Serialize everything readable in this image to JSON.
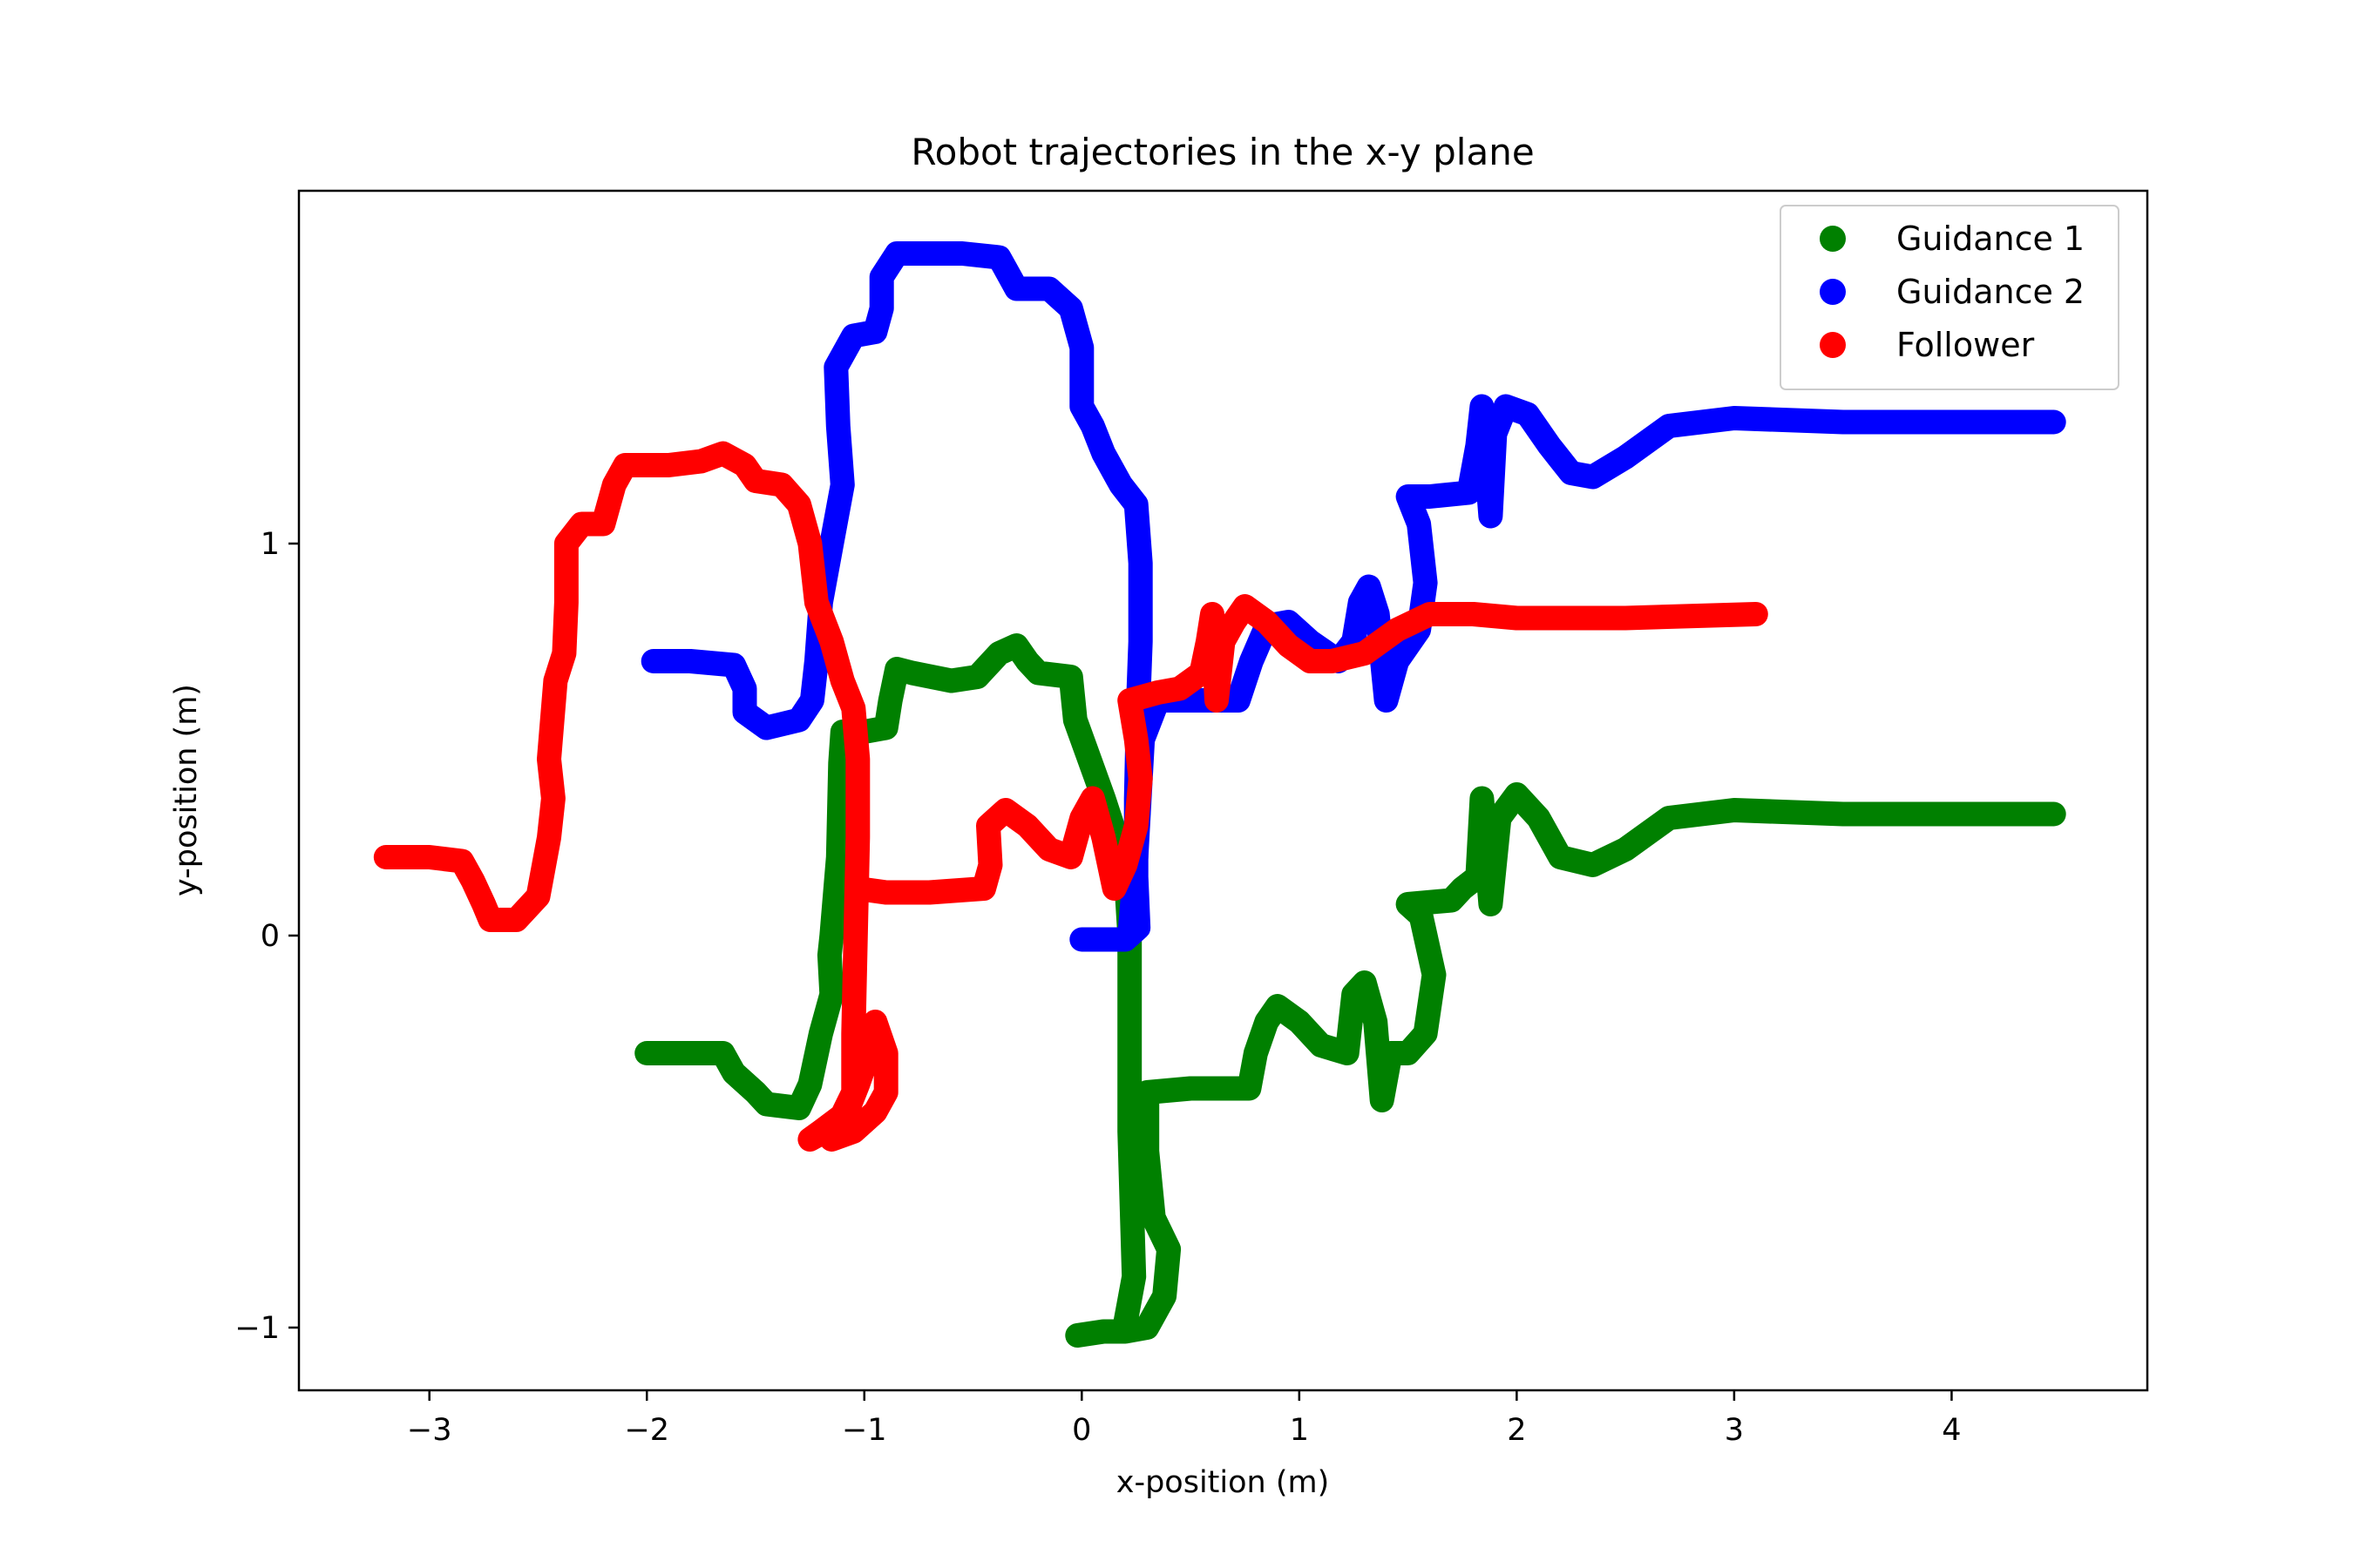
{
  "chart_data": {
    "type": "scatter",
    "title": "Robot trajectories in the x-y plane",
    "xlabel": "x-position (m)",
    "ylabel": "y-position (m)",
    "xlim": [
      -3.6,
      4.9
    ],
    "ylim": [
      -1.16,
      1.9
    ],
    "xticks": [
      -3,
      -2,
      -1,
      0,
      1,
      2,
      3,
      4
    ],
    "xtick_labels": [
      "−3",
      "−2",
      "−1",
      "0",
      "1",
      "2",
      "3",
      "4"
    ],
    "yticks": [
      -1,
      0,
      1
    ],
    "ytick_labels": [
      "−1",
      "0",
      "1"
    ],
    "grid": false,
    "legend": "top-right",
    "series": [
      {
        "name": "Guidance 1",
        "color": "#008000",
        "points": [
          [
            0.2,
            -0.99
          ],
          [
            0.24,
            -0.87
          ],
          [
            0.22,
            -0.5
          ],
          [
            0.22,
            -0.25
          ],
          [
            0.22,
            0.0
          ],
          [
            0.2,
            0.18
          ],
          [
            0.1,
            0.35
          ],
          [
            -0.03,
            0.55
          ],
          [
            -0.05,
            0.66
          ],
          [
            -0.2,
            0.67
          ],
          [
            -0.25,
            0.7
          ],
          [
            -0.3,
            0.74
          ],
          [
            -0.38,
            0.72
          ],
          [
            -0.48,
            0.66
          ],
          [
            -0.6,
            0.65
          ],
          [
            -0.78,
            0.67
          ],
          [
            -0.85,
            0.68
          ],
          [
            -0.88,
            0.6
          ],
          [
            -0.9,
            0.53
          ],
          [
            -1.0,
            0.52
          ],
          [
            -1.1,
            0.52
          ],
          [
            -1.11,
            0.44
          ],
          [
            -1.12,
            0.2
          ],
          [
            -1.15,
            0.0
          ],
          [
            -1.16,
            -0.05
          ],
          [
            -1.15,
            -0.15
          ],
          [
            -1.2,
            -0.25
          ],
          [
            -1.25,
            -0.38
          ],
          [
            -1.3,
            -0.44
          ],
          [
            -1.45,
            -0.43
          ],
          [
            -1.5,
            -0.4
          ],
          [
            -1.6,
            -0.35
          ],
          [
            -1.65,
            -0.3
          ],
          [
            -1.8,
            -0.3
          ],
          [
            -2.0,
            -0.3
          ]
        ]
      },
      {
        "name": "Guidance 1",
        "color": "#008000",
        "points": [
          [
            -0.02,
            -1.02
          ],
          [
            0.1,
            -1.01
          ],
          [
            0.2,
            -1.01
          ],
          [
            0.3,
            -1.0
          ],
          [
            0.38,
            -0.92
          ],
          [
            0.4,
            -0.8
          ],
          [
            0.33,
            -0.72
          ],
          [
            0.3,
            -0.55
          ],
          [
            0.3,
            -0.4
          ],
          [
            0.5,
            -0.39
          ],
          [
            0.77,
            -0.39
          ],
          [
            0.8,
            -0.3
          ],
          [
            0.85,
            -0.22
          ],
          [
            0.9,
            -0.18
          ],
          [
            1.0,
            -0.22
          ],
          [
            1.1,
            -0.28
          ],
          [
            1.22,
            -0.3
          ],
          [
            1.25,
            -0.15
          ],
          [
            1.3,
            -0.12
          ],
          [
            1.35,
            -0.22
          ],
          [
            1.38,
            -0.42
          ],
          [
            1.42,
            -0.3
          ],
          [
            1.5,
            -0.3
          ],
          [
            1.58,
            -0.25
          ],
          [
            1.62,
            -0.1
          ],
          [
            1.56,
            0.05
          ],
          [
            1.5,
            0.08
          ],
          [
            1.7,
            0.09
          ],
          [
            1.75,
            0.12
          ],
          [
            1.82,
            0.15
          ],
          [
            1.84,
            0.35
          ],
          [
            1.88,
            0.08
          ],
          [
            1.92,
            0.3
          ],
          [
            2.0,
            0.36
          ],
          [
            2.1,
            0.3
          ],
          [
            2.2,
            0.2
          ],
          [
            2.35,
            0.18
          ],
          [
            2.5,
            0.22
          ],
          [
            2.7,
            0.3
          ],
          [
            3.0,
            0.32
          ],
          [
            3.5,
            0.31
          ],
          [
            4.0,
            0.31
          ],
          [
            4.47,
            0.31
          ]
        ]
      },
      {
        "name": "Guidance 2",
        "color": "#0000ff",
        "points": [
          [
            -1.97,
            0.7
          ],
          [
            -1.8,
            0.7
          ],
          [
            -1.6,
            0.69
          ],
          [
            -1.55,
            0.63
          ],
          [
            -1.55,
            0.57
          ],
          [
            -1.45,
            0.53
          ],
          [
            -1.3,
            0.55
          ],
          [
            -1.24,
            0.6
          ],
          [
            -1.22,
            0.7
          ],
          [
            -1.2,
            0.85
          ],
          [
            -1.15,
            1.0
          ],
          [
            -1.1,
            1.15
          ],
          [
            -1.12,
            1.3
          ],
          [
            -1.13,
            1.45
          ],
          [
            -1.05,
            1.53
          ],
          [
            -0.95,
            1.54
          ],
          [
            -0.92,
            1.6
          ],
          [
            -0.92,
            1.68
          ],
          [
            -0.85,
            1.74
          ],
          [
            -0.7,
            1.74
          ],
          [
            -0.55,
            1.74
          ],
          [
            -0.38,
            1.73
          ],
          [
            -0.35,
            1.7
          ],
          [
            -0.3,
            1.65
          ],
          [
            -0.15,
            1.65
          ],
          [
            -0.05,
            1.6
          ],
          [
            0.0,
            1.5
          ],
          [
            0.0,
            1.35
          ],
          [
            0.05,
            1.3
          ],
          [
            0.1,
            1.23
          ],
          [
            0.18,
            1.15
          ],
          [
            0.25,
            1.1
          ],
          [
            0.27,
            0.95
          ],
          [
            0.27,
            0.75
          ],
          [
            0.26,
            0.6
          ],
          [
            0.25,
            0.35
          ],
          [
            0.25,
            0.15
          ],
          [
            0.26,
            0.02
          ],
          [
            0.2,
            -0.01
          ],
          [
            0.08,
            -0.01
          ],
          [
            0.0,
            -0.01
          ]
        ]
      },
      {
        "name": "Guidance 2",
        "color": "#0000ff",
        "points": [
          [
            0.22,
            0.0
          ],
          [
            0.25,
            0.2
          ],
          [
            0.28,
            0.5
          ],
          [
            0.35,
            0.6
          ],
          [
            0.5,
            0.6
          ],
          [
            0.72,
            0.6
          ],
          [
            0.78,
            0.7
          ],
          [
            0.85,
            0.79
          ],
          [
            0.95,
            0.8
          ],
          [
            1.05,
            0.75
          ],
          [
            1.18,
            0.7
          ],
          [
            1.25,
            0.75
          ],
          [
            1.28,
            0.85
          ],
          [
            1.32,
            0.89
          ],
          [
            1.36,
            0.82
          ],
          [
            1.4,
            0.6
          ],
          [
            1.45,
            0.7
          ],
          [
            1.55,
            0.78
          ],
          [
            1.58,
            0.9
          ],
          [
            1.55,
            1.05
          ],
          [
            1.5,
            1.12
          ],
          [
            1.6,
            1.12
          ],
          [
            1.78,
            1.13
          ],
          [
            1.82,
            1.25
          ],
          [
            1.84,
            1.35
          ],
          [
            1.88,
            1.07
          ],
          [
            1.9,
            1.28
          ],
          [
            1.95,
            1.35
          ],
          [
            2.05,
            1.33
          ],
          [
            2.15,
            1.25
          ],
          [
            2.25,
            1.18
          ],
          [
            2.35,
            1.17
          ],
          [
            2.5,
            1.22
          ],
          [
            2.7,
            1.3
          ],
          [
            3.0,
            1.32
          ],
          [
            3.5,
            1.31
          ],
          [
            4.0,
            1.31
          ],
          [
            4.47,
            1.31
          ]
        ]
      },
      {
        "name": "Follower",
        "color": "#ff0000",
        "points": [
          [
            -3.2,
            0.2
          ],
          [
            -3.0,
            0.2
          ],
          [
            -2.85,
            0.19
          ],
          [
            -2.8,
            0.14
          ],
          [
            -2.75,
            0.08
          ],
          [
            -2.72,
            0.04
          ],
          [
            -2.6,
            0.04
          ],
          [
            -2.5,
            0.1
          ],
          [
            -2.45,
            0.25
          ],
          [
            -2.43,
            0.35
          ],
          [
            -2.45,
            0.45
          ],
          [
            -2.42,
            0.65
          ],
          [
            -2.38,
            0.72
          ],
          [
            -2.37,
            0.85
          ],
          [
            -2.37,
            1.0
          ],
          [
            -2.3,
            1.05
          ],
          [
            -2.2,
            1.05
          ],
          [
            -2.15,
            1.15
          ],
          [
            -2.1,
            1.2
          ],
          [
            -1.9,
            1.2
          ],
          [
            -1.75,
            1.21
          ],
          [
            -1.65,
            1.23
          ],
          [
            -1.55,
            1.2
          ],
          [
            -1.5,
            1.16
          ],
          [
            -1.38,
            1.15
          ],
          [
            -1.3,
            1.1
          ],
          [
            -1.25,
            1.0
          ],
          [
            -1.22,
            0.85
          ],
          [
            -1.15,
            0.75
          ],
          [
            -1.1,
            0.65
          ],
          [
            -1.05,
            0.58
          ],
          [
            -1.03,
            0.45
          ],
          [
            -1.03,
            0.25
          ],
          [
            -1.04,
            0.0
          ],
          [
            -1.05,
            -0.25
          ],
          [
            -1.05,
            -0.4
          ],
          [
            -1.12,
            -0.48
          ],
          [
            -1.25,
            -0.52
          ],
          [
            -1.2,
            -0.5
          ],
          [
            -1.08,
            -0.45
          ],
          [
            -1.03,
            -0.38
          ],
          [
            -0.98,
            -0.3
          ],
          [
            -0.95,
            -0.22
          ],
          [
            -0.9,
            -0.3
          ],
          [
            -0.9,
            -0.4
          ],
          [
            -0.95,
            -0.45
          ],
          [
            -1.05,
            -0.5
          ],
          [
            -1.15,
            -0.52
          ]
        ]
      },
      {
        "name": "Follower",
        "color": "#ff0000",
        "points": [
          [
            -1.03,
            0.12
          ],
          [
            -0.9,
            0.11
          ],
          [
            -0.7,
            0.11
          ],
          [
            -0.45,
            0.12
          ],
          [
            -0.42,
            0.18
          ],
          [
            -0.43,
            0.28
          ],
          [
            -0.35,
            0.32
          ],
          [
            -0.25,
            0.28
          ],
          [
            -0.15,
            0.22
          ],
          [
            -0.05,
            0.2
          ],
          [
            0.0,
            0.3
          ],
          [
            0.05,
            0.35
          ],
          [
            0.1,
            0.25
          ],
          [
            0.15,
            0.12
          ],
          [
            0.2,
            0.18
          ],
          [
            0.25,
            0.28
          ],
          [
            0.27,
            0.4
          ],
          [
            0.25,
            0.5
          ],
          [
            0.22,
            0.6
          ],
          [
            0.35,
            0.62
          ],
          [
            0.45,
            0.63
          ],
          [
            0.55,
            0.67
          ],
          [
            0.58,
            0.75
          ],
          [
            0.6,
            0.82
          ],
          [
            0.62,
            0.6
          ],
          [
            0.65,
            0.75
          ],
          [
            0.7,
            0.8
          ],
          [
            0.75,
            0.84
          ],
          [
            0.85,
            0.8
          ],
          [
            0.95,
            0.74
          ],
          [
            1.05,
            0.7
          ],
          [
            1.15,
            0.7
          ],
          [
            1.3,
            0.72
          ],
          [
            1.45,
            0.78
          ],
          [
            1.6,
            0.82
          ],
          [
            1.8,
            0.82
          ],
          [
            2.0,
            0.81
          ],
          [
            2.5,
            0.81
          ],
          [
            3.1,
            0.82
          ]
        ]
      }
    ]
  }
}
